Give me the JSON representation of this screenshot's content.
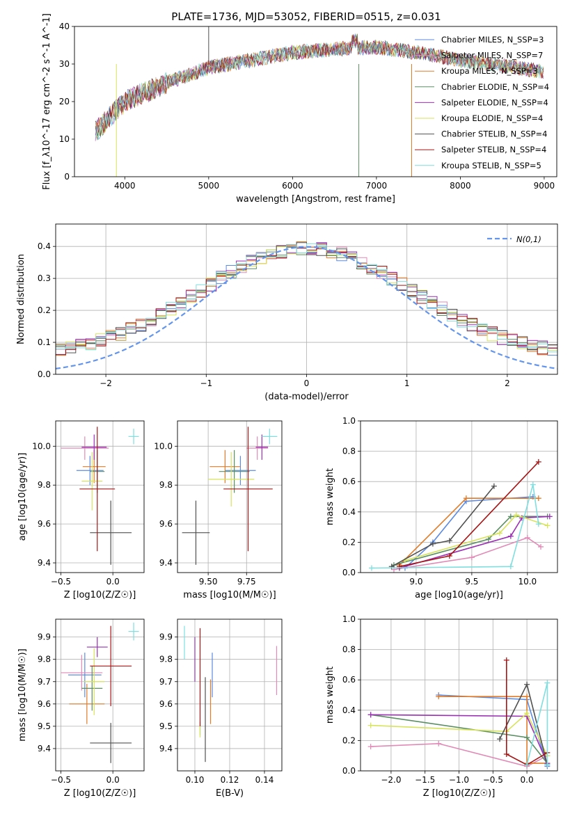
{
  "figure": {
    "title": "PLATE=1736, MJD=53052, FIBERID=0515, z=0.031"
  },
  "colors": {
    "chabrier_miles": "#5c8ae0",
    "salpeter_miles": "#e18ab6",
    "kroupa_miles": "#e07b2a",
    "chabrier_elodie": "#5b8f63",
    "salpeter_elodie": "#9a2fb3",
    "kroupa_elodie": "#d7e35a",
    "chabrier_stelib": "#505050",
    "salpeter_stelib": "#a61515",
    "kroupa_stelib": "#7fdede",
    "gauss": "#6495ed",
    "grid": "#b0b0b0"
  },
  "legend": [
    "Chabrier MILES, N_SSP=3",
    "Salpeter MILES, N_SSP=7",
    "Kroupa MILES, N_SSP=3",
    "Chabrier ELODIE, N_SSP=4",
    "Salpeter ELODIE, N_SSP=4",
    "Kroupa ELODIE, N_SSP=4",
    "Chabrier STELIB, N_SSP=4",
    "Salpeter STELIB, N_SSP=4",
    "Kroupa STELIB, N_SSP=5"
  ],
  "chart_data": [
    {
      "id": "spectrum",
      "type": "line",
      "xlabel": "wavelength [Angstrom, rest frame]",
      "ylabel": "Flux [f_λ10^-17 erg cm^-2 s^-1 A^-1]",
      "xlim": [
        3400,
        9150
      ],
      "ylim": [
        0,
        40
      ],
      "xticks": [
        4000,
        5000,
        6000,
        7000,
        8000,
        9000
      ],
      "yticks": [
        0,
        10,
        20,
        30,
        40
      ],
      "continuum": {
        "x": [
          3650,
          4000,
          4500,
          5000,
          5500,
          6000,
          6500,
          7000,
          7500,
          8000,
          8500,
          9000
        ],
        "y": [
          12,
          20,
          25,
          29,
          31,
          33,
          34,
          34.5,
          33,
          31,
          29.5,
          28
        ]
      }
    },
    {
      "id": "residuals",
      "type": "line",
      "xlabel": "(data-model)/error",
      "ylabel": "Normed distribution",
      "xlim": [
        -2.5,
        2.5
      ],
      "ylim": [
        0,
        0.47
      ],
      "xticks": [
        -2,
        -1,
        0,
        1,
        2
      ],
      "yticks": [
        0.0,
        0.1,
        0.2,
        0.3,
        0.4
      ],
      "gauss_label": "N(0,1)",
      "bin_width": 0.1
    },
    {
      "id": "age_vs_Z",
      "type": "scatter",
      "xlabel": "Z [log10(Z/Z☉)]",
      "ylabel": "age [log10(age/yr)]",
      "xlim": [
        -0.55,
        0.3
      ],
      "ylim": [
        9.35,
        10.13
      ],
      "xticks": [
        -0.5,
        0.0
      ],
      "yticks": [
        9.4,
        9.6,
        9.8,
        10.0
      ],
      "points": [
        {
          "model": "chabrier_miles",
          "x": -0.22,
          "xerr": 0.13,
          "y": 9.875,
          "yerr": 0.075
        },
        {
          "model": "salpeter_miles",
          "x": -0.27,
          "xerr": 0.23,
          "y": 9.99,
          "yerr": 0.06
        },
        {
          "model": "kroupa_miles",
          "x": -0.18,
          "xerr": 0.11,
          "y": 9.895,
          "yerr": 0.085
        },
        {
          "model": "chabrier_elodie",
          "x": -0.15,
          "xerr": 0.07,
          "y": 9.87,
          "yerr": 0.11
        },
        {
          "model": "salpeter_elodie",
          "x": -0.18,
          "xerr": 0.12,
          "y": 9.995,
          "yerr": 0.065
        },
        {
          "model": "kroupa_elodie",
          "x": -0.2,
          "xerr": 0.1,
          "y": 9.82,
          "yerr": 0.15
        },
        {
          "model": "chabrier_stelib",
          "x": -0.02,
          "xerr": 0.2,
          "y": 9.555,
          "yerr": 0.165
        },
        {
          "model": "salpeter_stelib",
          "x": -0.15,
          "xerr": 0.17,
          "y": 9.78,
          "yerr": 0.32
        },
        {
          "model": "kroupa_stelib",
          "x": 0.2,
          "xerr": 0.05,
          "y": 10.05,
          "yerr": 0.04
        }
      ]
    },
    {
      "id": "age_vs_mass",
      "type": "scatter",
      "xlabel": "mass [log10(M/M☉)]",
      "ylabel": "",
      "xlim": [
        9.3,
        9.98
      ],
      "ylim": [
        9.35,
        10.13
      ],
      "xticks": [
        9.5,
        9.75
      ],
      "yticks": [
        9.4,
        9.6,
        9.8,
        10.0
      ],
      "points": [
        {
          "model": "chabrier_miles",
          "x": 9.71,
          "xerr": 0.1,
          "y": 9.875,
          "yerr": 0.075
        },
        {
          "model": "salpeter_miles",
          "x": 9.82,
          "xerr": 0.07,
          "y": 9.99,
          "yerr": 0.06
        },
        {
          "model": "kroupa_miles",
          "x": 9.61,
          "xerr": 0.1,
          "y": 9.895,
          "yerr": 0.085
        },
        {
          "model": "chabrier_elodie",
          "x": 9.67,
          "xerr": 0.1,
          "y": 9.87,
          "yerr": 0.11
        },
        {
          "model": "salpeter_elodie",
          "x": 9.85,
          "xerr": 0.04,
          "y": 9.995,
          "yerr": 0.065
        },
        {
          "model": "kroupa_elodie",
          "x": 9.65,
          "xerr": 0.15,
          "y": 9.83,
          "yerr": 0.14
        },
        {
          "model": "chabrier_stelib",
          "x": 9.42,
          "xerr": 0.09,
          "y": 9.555,
          "yerr": 0.165
        },
        {
          "model": "salpeter_stelib",
          "x": 9.76,
          "xerr": 0.16,
          "y": 9.78,
          "yerr": 0.32
        },
        {
          "model": "kroupa_stelib",
          "x": 9.9,
          "xerr": 0.05,
          "y": 10.05,
          "yerr": 0.04
        }
      ]
    },
    {
      "id": "weight_vs_age",
      "type": "line",
      "xlabel": "age [log10(age/yr)]",
      "ylabel": "mass weight",
      "xlim": [
        8.5,
        10.27
      ],
      "ylim": [
        0,
        1.0
      ],
      "xticks": [
        9.0,
        9.5,
        10.0
      ],
      "yticks": [
        0.0,
        0.2,
        0.4,
        0.6,
        0.8,
        1.0
      ],
      "series": [
        {
          "model": "chabrier_miles",
          "x": [
            8.9,
            9.15,
            9.45,
            10.05
          ],
          "y": [
            0.03,
            0.2,
            0.47,
            0.5
          ]
        },
        {
          "model": "salpeter_miles",
          "x": [
            8.8,
            9.5,
            10.0,
            10.12
          ],
          "y": [
            0.02,
            0.1,
            0.23,
            0.17
          ]
        },
        {
          "model": "kroupa_miles",
          "x": [
            8.85,
            9.45,
            10.1
          ],
          "y": [
            0.05,
            0.49,
            0.49
          ]
        },
        {
          "model": "chabrier_elodie",
          "x": [
            8.8,
            9.65,
            9.85,
            10.18
          ],
          "y": [
            0.05,
            0.22,
            0.37,
            0.37
          ]
        },
        {
          "model": "salpeter_elodie",
          "x": [
            8.85,
            9.85,
            9.95,
            10.2
          ],
          "y": [
            0.03,
            0.24,
            0.36,
            0.37
          ]
        },
        {
          "model": "kroupa_elodie",
          "x": [
            8.9,
            9.75,
            9.9,
            10.18
          ],
          "y": [
            0.08,
            0.26,
            0.38,
            0.31
          ]
        },
        {
          "model": "chabrier_stelib",
          "x": [
            8.78,
            9.15,
            9.3,
            9.7
          ],
          "y": [
            0.04,
            0.19,
            0.21,
            0.57
          ]
        },
        {
          "model": "salpeter_stelib",
          "x": [
            8.85,
            9.3,
            10.1
          ],
          "y": [
            0.04,
            0.11,
            0.73
          ]
        },
        {
          "model": "kroupa_stelib",
          "x": [
            8.6,
            9.85,
            10.05,
            10.1
          ],
          "y": [
            0.03,
            0.04,
            0.58,
            0.32
          ]
        }
      ]
    },
    {
      "id": "mass_vs_Z",
      "type": "scatter",
      "xlabel": "Z [log10(Z/Z☉)]",
      "ylabel": "mass [log10(M/M☉)]",
      "xlim": [
        -0.55,
        0.3
      ],
      "ylim": [
        9.3,
        9.98
      ],
      "xticks": [
        -0.5,
        0.0
      ],
      "yticks": [
        9.4,
        9.5,
        9.6,
        9.7,
        9.8,
        9.9
      ],
      "points": [
        {
          "model": "chabrier_miles",
          "x": -0.27,
          "xerr": 0.16,
          "y": 9.73,
          "yerr": 0.1
        },
        {
          "model": "salpeter_miles",
          "x": -0.3,
          "xerr": 0.2,
          "y": 9.74,
          "yerr": 0.08
        },
        {
          "model": "kroupa_miles",
          "x": -0.25,
          "xerr": 0.17,
          "y": 9.6,
          "yerr": 0.09
        },
        {
          "model": "chabrier_elodie",
          "x": -0.2,
          "xerr": 0.1,
          "y": 9.67,
          "yerr": 0.1
        },
        {
          "model": "salpeter_elodie",
          "x": -0.15,
          "xerr": 0.1,
          "y": 9.855,
          "yerr": 0.045
        },
        {
          "model": "kroupa_elodie",
          "x": -0.18,
          "xerr": 0.1,
          "y": 9.7,
          "yerr": 0.15
        },
        {
          "model": "chabrier_stelib",
          "x": -0.02,
          "xerr": 0.2,
          "y": 9.425,
          "yerr": 0.09
        },
        {
          "model": "salpeter_stelib",
          "x": -0.02,
          "xerr": 0.2,
          "y": 9.77,
          "yerr": 0.18
        },
        {
          "model": "kroupa_stelib",
          "x": 0.2,
          "xerr": 0.05,
          "y": 9.925,
          "yerr": 0.04
        }
      ]
    },
    {
      "id": "mass_vs_ebv",
      "type": "scatter",
      "xlabel": "E(B-V)",
      "ylabel": "",
      "xlim": [
        0.09,
        0.15
      ],
      "ylim": [
        9.3,
        9.98
      ],
      "xticks": [
        0.1,
        0.12,
        0.14
      ],
      "yticks": [
        9.4,
        9.5,
        9.6,
        9.7,
        9.8,
        9.9
      ],
      "points": [
        {
          "model": "chabrier_miles",
          "x": 0.11,
          "y": 9.73,
          "yerr": 0.1
        },
        {
          "model": "salpeter_miles",
          "x": 0.147,
          "y": 9.75,
          "yerr": 0.11
        },
        {
          "model": "kroupa_miles",
          "x": 0.109,
          "y": 9.61,
          "yerr": 0.1
        },
        {
          "model": "chabrier_elodie",
          "x": 0.103,
          "y": 9.49,
          "yerr": 0.03
        },
        {
          "model": "salpeter_elodie",
          "x": 0.1,
          "y": 9.8,
          "yerr": 0.1
        },
        {
          "model": "kroupa_elodie",
          "x": 0.103,
          "y": 9.48,
          "yerr": 0.03
        },
        {
          "model": "chabrier_stelib",
          "x": 0.106,
          "y": 9.53,
          "yerr": 0.19
        },
        {
          "model": "salpeter_stelib",
          "x": 0.103,
          "y": 9.72,
          "yerr": 0.22
        },
        {
          "model": "kroupa_stelib",
          "x": 0.094,
          "y": 9.875,
          "yerr": 0.075
        }
      ]
    },
    {
      "id": "weight_vs_Z",
      "type": "line",
      "xlabel": "Z [log10(Z/Z☉)]",
      "ylabel": "mass weight",
      "xlim": [
        -2.45,
        0.45
      ],
      "ylim": [
        0,
        1.0
      ],
      "xticks": [
        -2.0,
        -1.5,
        -1.0,
        -0.5,
        0.0
      ],
      "yticks": [
        0.0,
        0.2,
        0.4,
        0.6,
        0.8,
        1.0
      ],
      "series": [
        {
          "model": "chabrier_miles",
          "x": [
            -1.3,
            0.0,
            0.3
          ],
          "y": [
            0.5,
            0.47,
            0.03
          ]
        },
        {
          "model": "salpeter_miles",
          "x": [
            -2.3,
            -1.3,
            0.0,
            0.3
          ],
          "y": [
            0.16,
            0.18,
            0.03,
            0.1
          ]
        },
        {
          "model": "kroupa_miles",
          "x": [
            -1.3,
            0.0,
            0.0,
            0.3
          ],
          "y": [
            0.49,
            0.49,
            0.05,
            0.05
          ]
        },
        {
          "model": "chabrier_elodie",
          "x": [
            -2.3,
            0.0,
            0.3
          ],
          "y": [
            0.37,
            0.22,
            0.05
          ]
        },
        {
          "model": "salpeter_elodie",
          "x": [
            -2.3,
            0.0,
            0.3
          ],
          "y": [
            0.37,
            0.36,
            0.05
          ]
        },
        {
          "model": "kroupa_elodie",
          "x": [
            -2.3,
            -0.3,
            0.0,
            0.3
          ],
          "y": [
            0.3,
            0.26,
            0.38,
            0.1
          ]
        },
        {
          "model": "chabrier_stelib",
          "x": [
            -0.4,
            0.0,
            0.3
          ],
          "y": [
            0.21,
            0.57,
            0.04
          ]
        },
        {
          "model": "salpeter_stelib",
          "x": [
            -0.3,
            -0.3,
            0.0,
            0.3
          ],
          "y": [
            0.73,
            0.11,
            0.04,
            0.12
          ]
        },
        {
          "model": "kroupa_stelib",
          "x": [
            0.0,
            0.3,
            0.3
          ],
          "y": [
            0.04,
            0.58,
            0.04
          ]
        }
      ]
    }
  ]
}
